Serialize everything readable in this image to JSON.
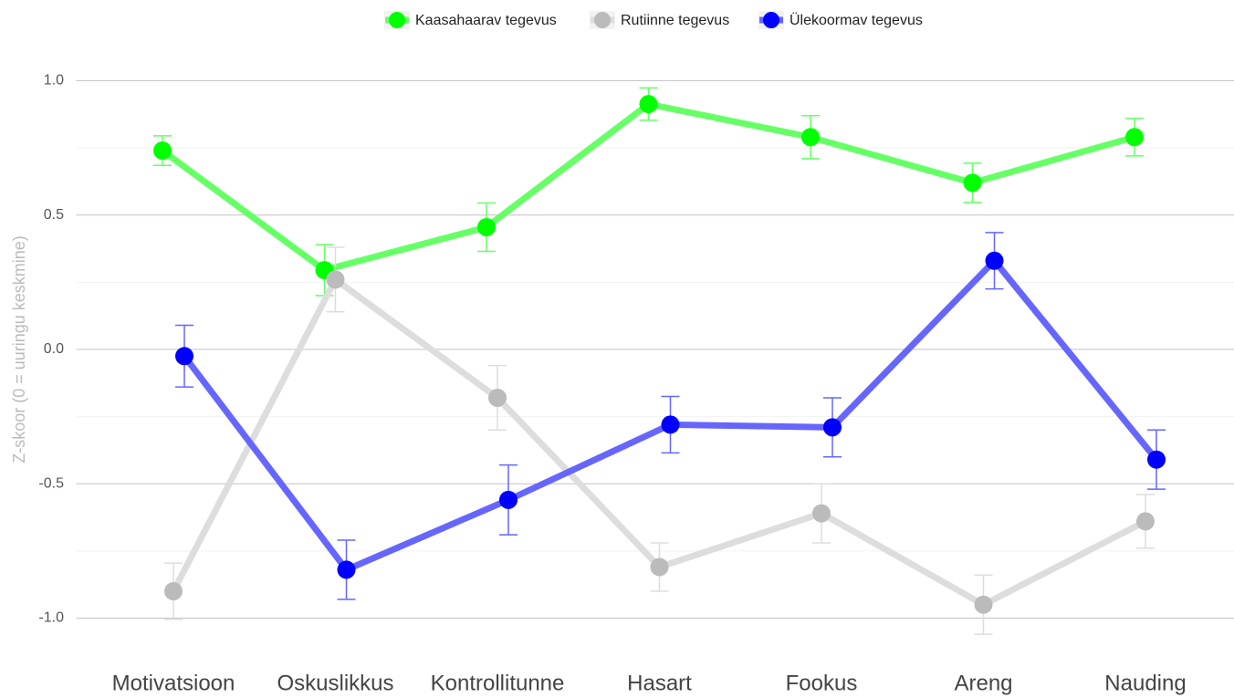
{
  "chart_data": {
    "type": "line",
    "y_label": "Z-skoor (0 = uuringu keskmine)",
    "categories": [
      "Motivatsioon",
      "Oskuslikkus",
      "Kontrollitunne",
      "Hasart",
      "Fookus",
      "Areng",
      "Nauding"
    ],
    "series": [
      {
        "name": "Kaasahaarav tegevus",
        "color": "#00ff00",
        "line_color": "#66ff66",
        "values": [
          0.74,
          0.295,
          0.455,
          0.913,
          0.79,
          0.62,
          0.79
        ],
        "errors": [
          0.055,
          0.095,
          0.09,
          0.06,
          0.08,
          0.073,
          0.07
        ]
      },
      {
        "name": "Rutiinne tegevus",
        "color": "#bbbbbb",
        "line_color": "#dddddd",
        "values": [
          -0.9,
          0.26,
          -0.18,
          -0.81,
          -0.61,
          -0.95,
          -0.64
        ],
        "errors": [
          0.105,
          0.12,
          0.12,
          0.09,
          0.11,
          0.11,
          0.1
        ]
      },
      {
        "name": "Ülekoormav tegevus",
        "color": "#0000ff",
        "line_color": "#6666ff",
        "values": [
          -0.025,
          -0.82,
          -0.56,
          -0.28,
          -0.29,
          0.33,
          -0.41
        ],
        "errors": [
          0.115,
          0.11,
          0.13,
          0.105,
          0.11,
          0.105,
          0.11
        ]
      }
    ],
    "ylim": [
      -1.08,
      1.1
    ],
    "yticks": [
      {
        "value": -1,
        "label": "-1.0"
      },
      -0.5,
      {
        "value": 0,
        "label": "0.0"
      },
      0.5,
      {
        "value": 1,
        "label": "1.0"
      }
    ],
    "minor_yticks": [
      -0.75,
      -0.25,
      0.25,
      0.75
    ],
    "grid": true,
    "legend": "top"
  }
}
